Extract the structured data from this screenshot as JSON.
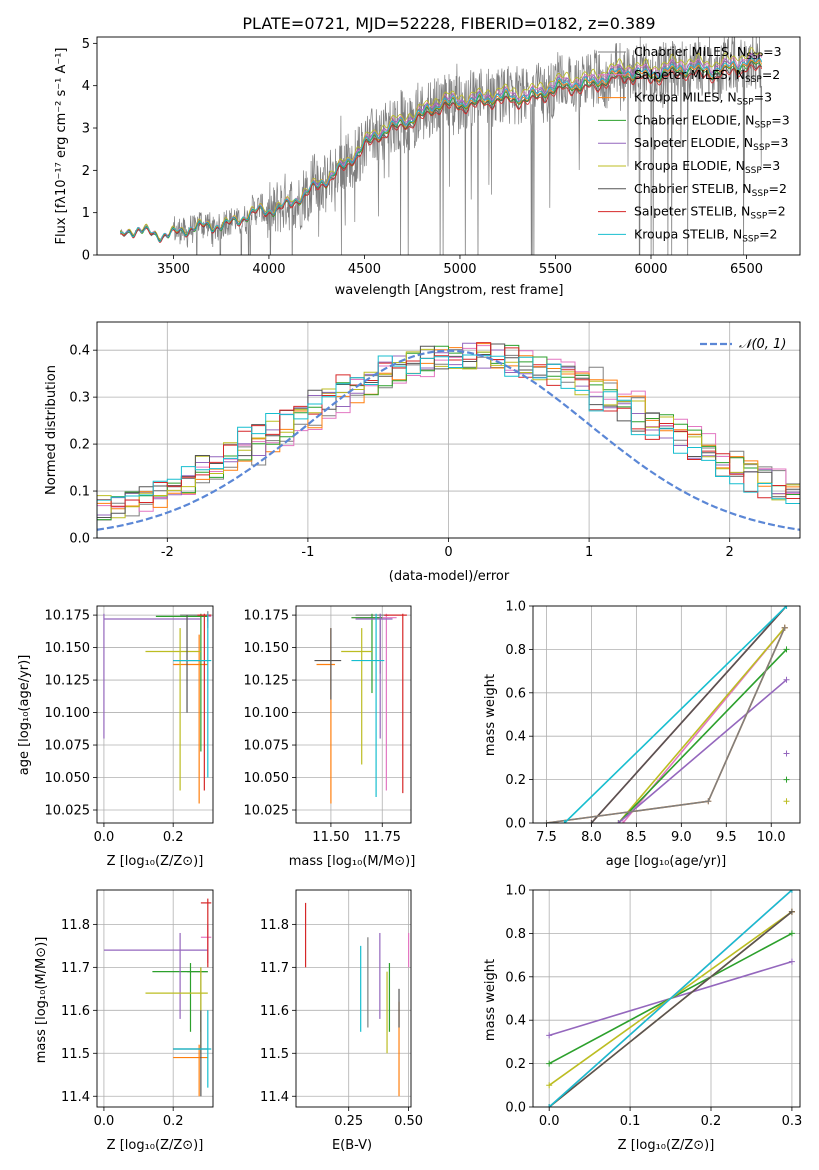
{
  "figure": {
    "title": "PLATE=0721, MJD=52228, FIBERID=0182, z=0.389"
  },
  "colors": {
    "cm": "#7f7f7f",
    "sm": "#e377c2",
    "km": "#ff7f0e",
    "ce": "#2ca02c",
    "se": "#9467bd",
    "ke": "#bcbd22",
    "cs": "#555555",
    "ss": "#d62728",
    "ks": "#17becf",
    "normal": "#5b87d6"
  },
  "chart_data": [
    {
      "id": "spectrum",
      "type": "line",
      "xlabel": "wavelength [Angstrom, rest frame]",
      "ylabel": "Flux [f$_\\lambda$ 10$^{-17}$ erg cm$^{-2}$ s$^{-1}$ A$^{-1}$]",
      "xlim": [
        3100,
        6780
      ],
      "ylim": [
        0,
        5.15
      ],
      "xticks": [
        3500,
        4000,
        4500,
        5000,
        5500,
        6000,
        6500
      ],
      "yticks": [
        0,
        1,
        2,
        3,
        4,
        5
      ],
      "continuum_points": [
        [
          3220,
          0.38
        ],
        [
          3250,
          0.5
        ],
        [
          3300,
          0.55
        ],
        [
          3450,
          0.52
        ],
        [
          3550,
          0.55
        ],
        [
          3700,
          0.7
        ],
        [
          3850,
          0.85
        ],
        [
          3950,
          1.0
        ],
        [
          4000,
          1.05
        ],
        [
          4100,
          1.25
        ],
        [
          4200,
          1.45
        ],
        [
          4300,
          1.75
        ],
        [
          4400,
          2.2
        ],
        [
          4500,
          2.6
        ],
        [
          4600,
          2.9
        ],
        [
          4700,
          3.2
        ],
        [
          4800,
          3.35
        ],
        [
          4900,
          3.55
        ],
        [
          5000,
          3.65
        ],
        [
          5100,
          3.7
        ],
        [
          5200,
          3.7
        ],
        [
          5300,
          3.75
        ],
        [
          5400,
          3.85
        ],
        [
          5500,
          3.95
        ],
        [
          5600,
          4.05
        ],
        [
          5700,
          4.15
        ],
        [
          5800,
          4.25
        ],
        [
          5900,
          4.3
        ],
        [
          6000,
          4.35
        ],
        [
          6200,
          4.4
        ],
        [
          6400,
          4.45
        ],
        [
          6580,
          4.55
        ]
      ],
      "series": [
        {
          "name": "Chabrier MILES, N_SSP=3",
          "legend": [
            "Chabrier MILES, N",
            "SSP",
            "=3"
          ],
          "color_key": "cm",
          "scale": 1.0
        },
        {
          "name": "Salpeter MILES, N_SSP=2",
          "legend": [
            "Salpeter MILES, N",
            "SSP",
            "=2"
          ],
          "color_key": "sm",
          "scale": 1.02
        },
        {
          "name": "Kroupa MILES, N_SSP=3",
          "legend": [
            "Kroupa MILES, N",
            "SSP",
            "=3"
          ],
          "color_key": "km",
          "scale": 0.99
        },
        {
          "name": "Chabrier ELODIE, N_SSP=3",
          "legend": [
            "Chabrier ELODIE, N",
            "SSP",
            "=3"
          ],
          "color_key": "ce",
          "scale": 0.98
        },
        {
          "name": "Salpeter ELODIE, N_SSP=3",
          "legend": [
            "Salpeter ELODIE, N",
            "SSP",
            "=3"
          ],
          "color_key": "se",
          "scale": 1.01
        },
        {
          "name": "Kroupa ELODIE, N_SSP=3",
          "legend": [
            "Kroupa ELODIE, N",
            "SSP",
            "=3"
          ],
          "color_key": "ke",
          "scale": 1.04
        },
        {
          "name": "Chabrier STELIB, N_SSP=2",
          "legend": [
            "Chabrier STELIB, N",
            "SSP",
            "=2"
          ],
          "color_key": "cs",
          "scale": 0.97
        },
        {
          "name": "Salpeter STELIB, N_SSP=2",
          "legend": [
            "Salpeter STELIB, N",
            "SSP",
            "=2"
          ],
          "color_key": "ss",
          "scale": 0.96
        },
        {
          "name": "Kroupa STELIB, N_SSP=2",
          "legend": [
            "Kroupa STELIB, N",
            "SSP",
            "=2"
          ],
          "color_key": "ks",
          "scale": 1.0
        }
      ],
      "data_color_key": "cm"
    },
    {
      "id": "residuals",
      "type": "step-histogram",
      "xlabel": "(data-model)/error",
      "ylabel": "Normed distribution",
      "xlim": [
        -2.5,
        2.5
      ],
      "ylim": [
        0,
        0.46
      ],
      "xticks": [
        -2,
        -1,
        0,
        1,
        2
      ],
      "yticks": [
        0.0,
        0.1,
        0.2,
        0.3,
        0.4
      ],
      "bin_width": 0.1,
      "reference": {
        "label": "𝒩(0, 1)",
        "mean": 0,
        "sigma": 1,
        "color_key": "normal"
      }
    },
    {
      "id": "age-vs-Z",
      "type": "scatter",
      "xlabel": "Z [log10(Z/Z⊙)]",
      "ylabel": "age  [log10(age/yr)]",
      "xlim": [
        -0.02,
        0.315
      ],
      "ylim": [
        10.015,
        10.182
      ],
      "xticks": [
        0.0,
        0.2
      ],
      "yticks": [
        10.025,
        10.05,
        10.075,
        10.1,
        10.125,
        10.15,
        10.175
      ],
      "points": [
        {
          "c": "cm",
          "x": 0.3,
          "xl": 0.22,
          "xh": 0.31,
          "y": 10.175,
          "yl": 10.17,
          "yh": 10.178
        },
        {
          "c": "sm",
          "x": 0.3,
          "xl": 0.26,
          "xh": 0.31,
          "y": 10.174,
          "yl": 10.165,
          "yh": 10.176
        },
        {
          "c": "km",
          "x": 0.275,
          "xl": 0.2,
          "xh": 0.3,
          "y": 10.137,
          "yl": 10.03,
          "yh": 10.16
        },
        {
          "c": "ce",
          "x": 0.28,
          "xl": 0.15,
          "xh": 0.3,
          "y": 10.174,
          "yl": 10.07,
          "yh": 10.176
        },
        {
          "c": "se",
          "x": 0.0,
          "xl": 0.0,
          "xh": 0.28,
          "y": 10.172,
          "yl": 10.08,
          "yh": 10.176
        },
        {
          "c": "ke",
          "x": 0.22,
          "xl": 0.12,
          "xh": 0.28,
          "y": 10.147,
          "yl": 10.04,
          "yh": 10.165
        },
        {
          "c": "cs",
          "x": 0.24,
          "xl": 0.2,
          "xh": 0.3,
          "y": 10.14,
          "yl": 10.1,
          "yh": 10.175
        },
        {
          "c": "ss",
          "x": 0.29,
          "xl": 0.27,
          "xh": 0.31,
          "y": 10.175,
          "yl": 10.04,
          "yh": 10.176
        },
        {
          "c": "ks",
          "x": 0.3,
          "xl": 0.2,
          "xh": 0.31,
          "y": 10.14,
          "yl": 10.05,
          "yh": 10.176
        }
      ]
    },
    {
      "id": "age-vs-mass",
      "type": "scatter",
      "xlabel": "mass [log10(M/M⊙)]",
      "ylabel": "",
      "xlim": [
        11.33,
        11.89
      ],
      "ylim": [
        10.015,
        10.182
      ],
      "xticks": [
        11.5,
        11.75
      ],
      "yticks": [
        10.025,
        10.05,
        10.075,
        10.1,
        10.125,
        10.15,
        10.175
      ],
      "points": [
        {
          "c": "cm",
          "x": 11.74,
          "xl": 11.62,
          "xh": 11.78,
          "y": 10.175,
          "yl": 10.13,
          "yh": 10.176
        },
        {
          "c": "sm",
          "x": 11.77,
          "xl": 11.6,
          "xh": 11.82,
          "y": 10.173,
          "yl": 10.04,
          "yh": 10.176
        },
        {
          "c": "km",
          "x": 11.5,
          "xl": 11.43,
          "xh": 11.52,
          "y": 10.137,
          "yl": 10.03,
          "yh": 10.165
        },
        {
          "c": "ce",
          "x": 11.7,
          "xl": 11.6,
          "xh": 11.75,
          "y": 10.173,
          "yl": 10.115,
          "yh": 10.176
        },
        {
          "c": "se",
          "x": 11.74,
          "xl": 11.62,
          "xh": 11.8,
          "y": 10.172,
          "yl": 10.08,
          "yh": 10.176
        },
        {
          "c": "ke",
          "x": 11.65,
          "xl": 11.55,
          "xh": 11.7,
          "y": 10.147,
          "yl": 10.06,
          "yh": 10.165
        },
        {
          "c": "cs",
          "x": 11.5,
          "xl": 11.42,
          "xh": 11.55,
          "y": 10.14,
          "yl": 10.11,
          "yh": 10.165
        },
        {
          "c": "ss",
          "x": 11.85,
          "xl": 11.76,
          "xh": 11.87,
          "y": 10.175,
          "yl": 10.038,
          "yh": 10.176
        },
        {
          "c": "ks",
          "x": 11.72,
          "xl": 11.6,
          "xh": 11.76,
          "y": 10.14,
          "yl": 10.035,
          "yh": 10.176
        }
      ]
    },
    {
      "id": "massweight-vs-age",
      "type": "line",
      "xlabel": "age  [log10(age/yr)]",
      "ylabel": "mass weight",
      "xlim": [
        7.35,
        10.32
      ],
      "ylim": [
        0,
        1
      ],
      "xticks": [
        7.5,
        8.0,
        8.5,
        9.0,
        9.5,
        10.0
      ],
      "yticks": [
        0.0,
        0.2,
        0.4,
        0.6,
        0.8,
        1.0
      ],
      "series": [
        {
          "c": "ss",
          "ages": [
            8.0,
            10.17
          ],
          "w": [
            0.0,
            1.0
          ]
        },
        {
          "c": "cs",
          "ages": [
            8.0,
            10.17
          ],
          "w": [
            0.0,
            1.0
          ]
        },
        {
          "c": "sm",
          "ages": [
            8.35,
            10.15
          ],
          "w": [
            0.0,
            0.9
          ]
        },
        {
          "c": "ke",
          "ages": [
            8.3,
            10.15
          ],
          "w": [
            0.0,
            0.9
          ]
        },
        {
          "c": "ce",
          "ages": [
            8.3,
            10.17
          ],
          "w": [
            0.0,
            0.8
          ]
        },
        {
          "c": "se",
          "ages": [
            8.3,
            10.17
          ],
          "w": [
            0.0,
            0.66
          ]
        },
        {
          "c": "km",
          "ages": [
            7.5,
            9.3,
            10.15
          ],
          "w": [
            0.0,
            0.1,
            0.9
          ]
        },
        {
          "c": "cm",
          "ages": [
            7.5,
            9.3,
            10.15
          ],
          "w": [
            0.0,
            0.1,
            0.9
          ]
        },
        {
          "c": "ks",
          "ages": [
            7.7,
            10.17
          ],
          "w": [
            0.0,
            1.0
          ]
        }
      ]
    },
    {
      "id": "mass-vs-Z",
      "type": "scatter",
      "xlabel": "Z [log10(Z/Z⊙)]",
      "ylabel": "mass [log10(M/M⊙)]",
      "xlim": [
        -0.02,
        0.315
      ],
      "ylim": [
        11.375,
        11.88
      ],
      "xticks": [
        0.0,
        0.2
      ],
      "yticks": [
        11.4,
        11.5,
        11.6,
        11.7,
        11.8
      ],
      "points": [
        {
          "c": "cm",
          "x": 0.28,
          "xl": 0.24,
          "xh": 0.3,
          "y": 11.69,
          "yl": 11.55,
          "yh": 11.7
        },
        {
          "c": "sm",
          "x": 0.3,
          "xl": 0.28,
          "xh": 0.31,
          "y": 11.77,
          "yl": 11.71,
          "yh": 11.8
        },
        {
          "c": "km",
          "x": 0.275,
          "xl": 0.2,
          "xh": 0.3,
          "y": 11.49,
          "yl": 11.4,
          "yh": 11.52
        },
        {
          "c": "ce",
          "x": 0.25,
          "xl": 0.14,
          "xh": 0.3,
          "y": 11.69,
          "yl": 11.55,
          "yh": 11.71
        },
        {
          "c": "se",
          "x": 0.22,
          "xl": 0.0,
          "xh": 0.3,
          "y": 11.74,
          "yl": 11.58,
          "yh": 11.78
        },
        {
          "c": "ke",
          "x": 0.28,
          "xl": 0.12,
          "xh": 0.3,
          "y": 11.64,
          "yl": 11.5,
          "yh": 11.7
        },
        {
          "c": "cs",
          "x": 0.28,
          "xl": 0.2,
          "xh": 0.3,
          "y": 11.51,
          "yl": 11.4,
          "yh": 11.6
        },
        {
          "c": "ss",
          "x": 0.3,
          "xl": 0.28,
          "xh": 0.31,
          "y": 11.85,
          "yl": 11.7,
          "yh": 11.86
        },
        {
          "c": "ks",
          "x": 0.3,
          "xl": 0.2,
          "xh": 0.31,
          "y": 11.51,
          "yl": 11.42,
          "yh": 11.6
        }
      ]
    },
    {
      "id": "mass-vs-ebv",
      "type": "scatter",
      "xlabel": "E(B-V)",
      "ylabel": "",
      "xlim": [
        0.03,
        0.51
      ],
      "ylim": [
        11.375,
        11.88
      ],
      "xticks": [
        0.25,
        0.5
      ],
      "yticks": [
        11.4,
        11.5,
        11.6,
        11.7,
        11.8
      ],
      "points": [
        {
          "c": "cm",
          "x": 0.33,
          "y": 11.7,
          "yl": 11.56,
          "yh": 11.77
        },
        {
          "c": "sm",
          "x": 0.5,
          "y": 11.74,
          "yl": 11.7,
          "yh": 11.78
        },
        {
          "c": "km",
          "x": 0.46,
          "y": 11.5,
          "yl": 11.4,
          "yh": 11.62
        },
        {
          "c": "ce",
          "x": 0.42,
          "y": 11.68,
          "yl": 11.55,
          "yh": 11.71
        },
        {
          "c": "se",
          "x": 0.38,
          "y": 11.74,
          "yl": 11.58,
          "yh": 11.78
        },
        {
          "c": "ke",
          "x": 0.41,
          "y": 11.56,
          "yl": 11.5,
          "yh": 11.69
        },
        {
          "c": "cs",
          "x": 0.46,
          "y": 11.6,
          "yl": 11.56,
          "yh": 11.65
        },
        {
          "c": "ss",
          "x": 0.07,
          "y": 11.78,
          "yl": 11.7,
          "yh": 11.85
        },
        {
          "c": "ks",
          "x": 0.3,
          "y": 11.65,
          "yl": 11.55,
          "yh": 11.75
        }
      ]
    },
    {
      "id": "massweight-vs-Z",
      "type": "line",
      "xlabel": "Z [log10(Z/Z⊙)]",
      "ylabel": "mass weight",
      "xlim": [
        -0.02,
        0.31
      ],
      "ylim": [
        0,
        1
      ],
      "xticks": [
        0.0,
        0.1,
        0.2,
        0.3
      ],
      "yticks": [
        0.0,
        0.2,
        0.4,
        0.6,
        0.8,
        1.0
      ],
      "series": [
        {
          "c": "se",
          "Z": [
            0.0,
            0.3
          ],
          "w": [
            0.33,
            0.67
          ]
        },
        {
          "c": "ce",
          "Z": [
            0.0,
            0.3
          ],
          "w": [
            0.2,
            0.8
          ]
        },
        {
          "c": "ke",
          "Z": [
            0.0,
            0.3
          ],
          "w": [
            0.1,
            0.9
          ]
        },
        {
          "c": "km",
          "Z": [
            0.0,
            0.3
          ],
          "w": [
            0.0,
            0.9
          ]
        },
        {
          "c": "sm",
          "Z": [
            0.0,
            0.3
          ],
          "w": [
            0.0,
            1.0
          ]
        },
        {
          "c": "cs",
          "Z": [
            0.0,
            0.3
          ],
          "w": [
            0.0,
            0.9
          ]
        },
        {
          "c": "ks",
          "Z": [
            0.0,
            0.3
          ],
          "w": [
            0.0,
            1.0
          ]
        }
      ]
    }
  ]
}
